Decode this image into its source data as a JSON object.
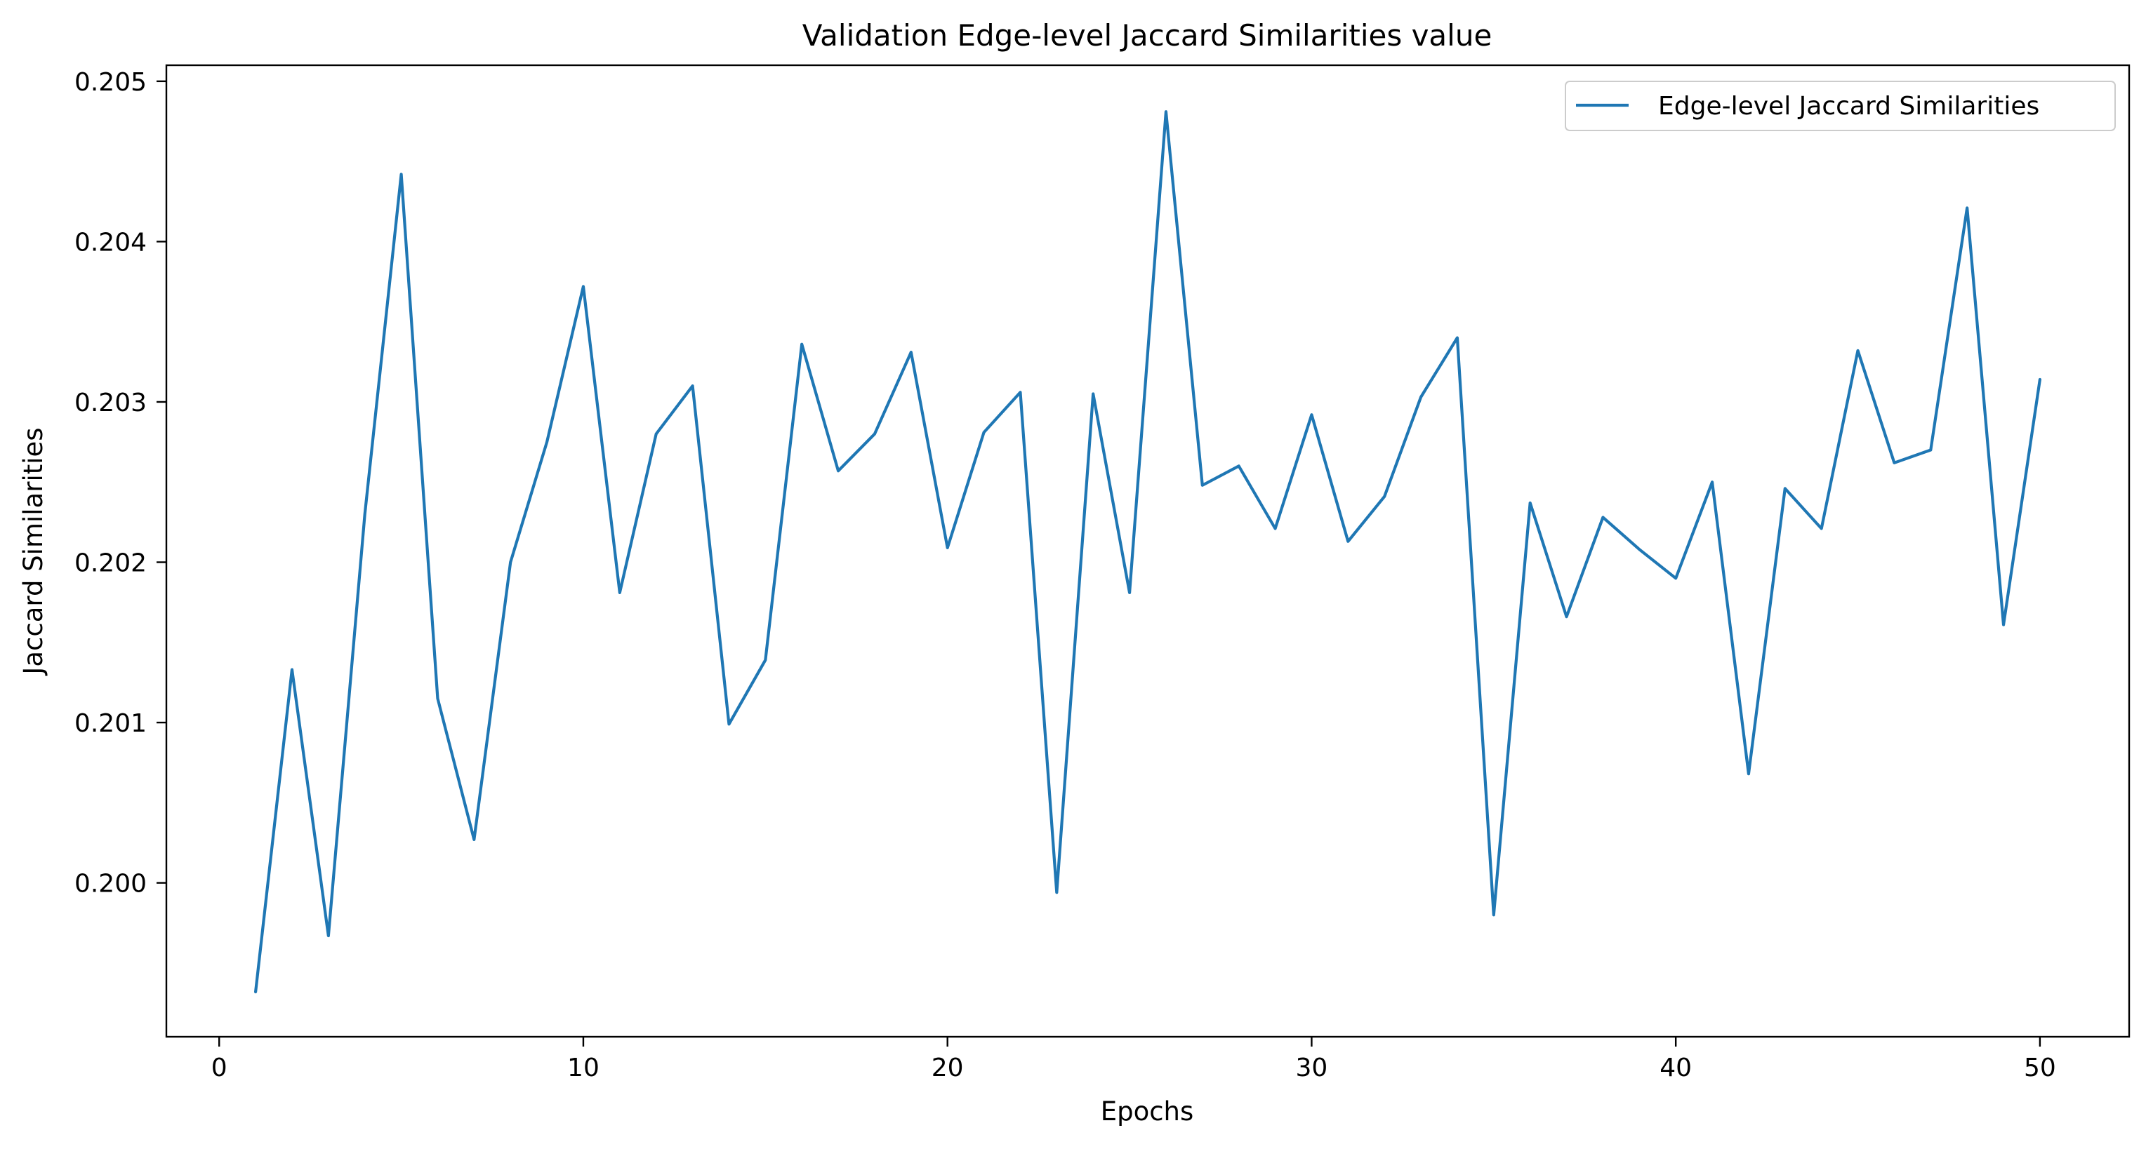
{
  "chart_data": {
    "type": "line",
    "title": "Validation Edge-level Jaccard Similarities value",
    "xlabel": "Epochs",
    "ylabel": "Jaccard Similarities",
    "xlim": [
      -1.45,
      52.45
    ],
    "ylim": [
      0.19904,
      0.2051
    ],
    "xticks": [
      0,
      10,
      20,
      30,
      40,
      50
    ],
    "yticks": [
      0.2,
      0.201,
      0.202,
      0.203,
      0.204,
      0.205
    ],
    "xtick_labels": [
      "0",
      "10",
      "20",
      "30",
      "40",
      "50"
    ],
    "ytick_labels": [
      "0.200",
      "0.201",
      "0.202",
      "0.203",
      "0.204",
      "0.205"
    ],
    "grid": false,
    "legend_position": "top-right",
    "series": [
      {
        "name": "Edge-level Jaccard Similarities",
        "color": "#1f77b4",
        "x": [
          1,
          2,
          3,
          4,
          5,
          6,
          7,
          8,
          9,
          10,
          11,
          12,
          13,
          14,
          15,
          16,
          17,
          18,
          19,
          20,
          21,
          22,
          23,
          24,
          25,
          26,
          27,
          28,
          29,
          30,
          31,
          32,
          33,
          34,
          35,
          36,
          37,
          38,
          39,
          40,
          41,
          42,
          43,
          44,
          45,
          46,
          47,
          48,
          49,
          50
        ],
        "values": [
          0.19932,
          0.20133,
          0.19967,
          0.2023,
          0.20442,
          0.20115,
          0.20027,
          0.202,
          0.20275,
          0.20372,
          0.20181,
          0.2028,
          0.2031,
          0.20099,
          0.20139,
          0.20336,
          0.20257,
          0.2028,
          0.20331,
          0.20209,
          0.20281,
          0.20306,
          0.19994,
          0.20305,
          0.20181,
          0.20481,
          0.20248,
          0.2026,
          0.20221,
          0.20292,
          0.20213,
          0.20241,
          0.20303,
          0.2034,
          0.1998,
          0.20237,
          0.20166,
          0.20228,
          0.20208,
          0.2019,
          0.2025,
          0.20068,
          0.20246,
          0.20221,
          0.20332,
          0.20262,
          0.2027,
          0.20421,
          0.20161,
          0.20314
        ]
      }
    ]
  }
}
